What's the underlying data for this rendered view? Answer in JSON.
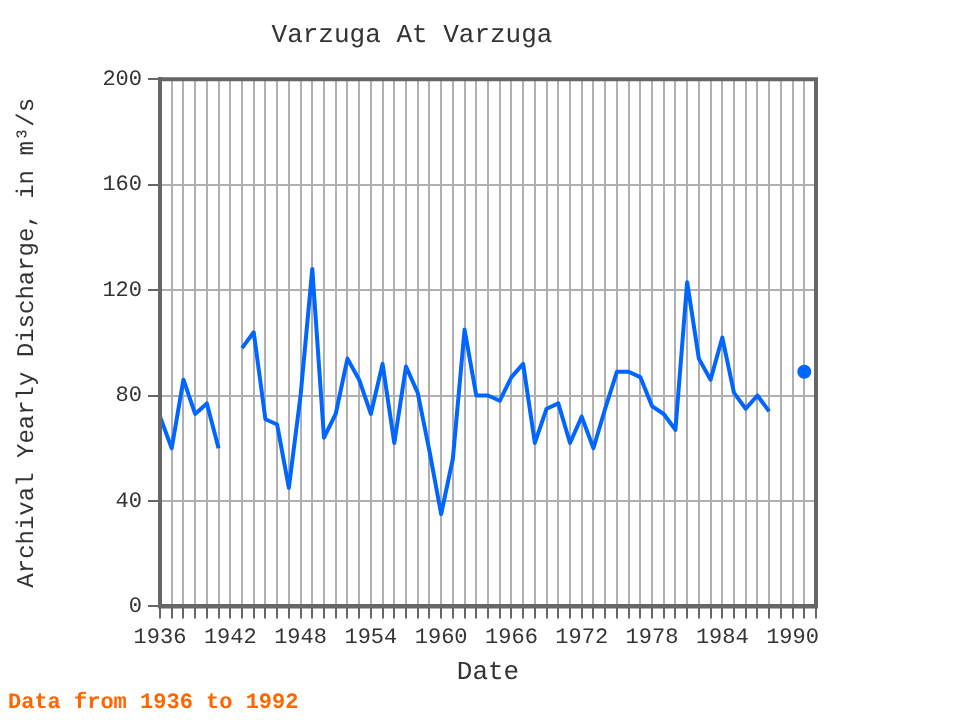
{
  "chart_data": {
    "type": "line",
    "title": "Varzuga At Varzuga",
    "xlabel": "Date",
    "ylabel": "Archival Yearly Discharge, in m³/s",
    "annotations": [
      "Data from 1936 to 1992"
    ],
    "x": [
      1936,
      1937,
      1938,
      1939,
      1940,
      1941,
      1942,
      1943,
      1944,
      1945,
      1946,
      1947,
      1948,
      1949,
      1950,
      1951,
      1952,
      1953,
      1954,
      1955,
      1956,
      1957,
      1958,
      1959,
      1960,
      1961,
      1962,
      1963,
      1964,
      1965,
      1966,
      1967,
      1968,
      1969,
      1970,
      1971,
      1972,
      1973,
      1974,
      1975,
      1976,
      1977,
      1978,
      1979,
      1980,
      1981,
      1982,
      1983,
      1984,
      1985,
      1986,
      1987,
      1988,
      1989,
      1990,
      1991
    ],
    "series": [
      {
        "color": "#0066ff",
        "values": [
          72,
          60,
          86,
          73,
          77,
          60,
          null,
          98,
          104,
          71,
          69,
          45,
          80,
          128,
          64,
          73,
          94,
          86,
          73,
          92,
          62,
          91,
          81,
          59,
          35,
          56,
          105,
          80,
          80,
          78,
          87,
          92,
          62,
          75,
          77,
          62,
          72,
          60,
          75,
          89,
          89,
          87,
          76,
          73,
          67,
          123,
          94,
          86,
          102,
          81,
          75,
          80,
          74,
          null,
          null,
          89
        ]
      }
    ],
    "xlim": [
      1936,
      1992
    ],
    "xticks": [
      1936,
      {
        "value": 1937,
        "label": null
      },
      {
        "value": 1938,
        "label": null
      },
      {
        "value": 1939,
        "label": null
      },
      {
        "value": 1940,
        "label": null
      },
      {
        "value": 1941,
        "label": null
      },
      1942,
      {
        "value": 1943,
        "label": null
      },
      {
        "value": 1944,
        "label": null
      },
      {
        "value": 1945,
        "label": null
      },
      {
        "value": 1946,
        "label": null
      },
      {
        "value": 1947,
        "label": null
      },
      1948,
      {
        "value": 1949,
        "label": null
      },
      {
        "value": 1950,
        "label": null
      },
      {
        "value": 1951,
        "label": null
      },
      {
        "value": 1952,
        "label": null
      },
      {
        "value": 1953,
        "label": null
      },
      1954,
      {
        "value": 1955,
        "label": null
      },
      {
        "value": 1956,
        "label": null
      },
      {
        "value": 1957,
        "label": null
      },
      {
        "value": 1958,
        "label": null
      },
      {
        "value": 1959,
        "label": null
      },
      1960,
      {
        "value": 1961,
        "label": null
      },
      {
        "value": 1962,
        "label": null
      },
      {
        "value": 1963,
        "label": null
      },
      {
        "value": 1964,
        "label": null
      },
      {
        "value": 1965,
        "label": null
      },
      1966,
      {
        "value": 1967,
        "label": null
      },
      {
        "value": 1968,
        "label": null
      },
      {
        "value": 1969,
        "label": null
      },
      {
        "value": 1970,
        "label": null
      },
      {
        "value": 1971,
        "label": null
      },
      1972,
      {
        "value": 1973,
        "label": null
      },
      {
        "value": 1974,
        "label": null
      },
      {
        "value": 1975,
        "label": null
      },
      {
        "value": 1976,
        "label": null
      },
      {
        "value": 1977,
        "label": null
      },
      1978,
      {
        "value": 1979,
        "label": null
      },
      {
        "value": 1980,
        "label": null
      },
      {
        "value": 1981,
        "label": null
      },
      {
        "value": 1982,
        "label": null
      },
      {
        "value": 1983,
        "label": null
      },
      1984,
      {
        "value": 1985,
        "label": null
      },
      {
        "value": 1986,
        "label": null
      },
      {
        "value": 1987,
        "label": null
      },
      {
        "value": 1988,
        "label": null
      },
      {
        "value": 1989,
        "label": null
      },
      1990,
      {
        "value": 1991,
        "label": null
      },
      {
        "value": 1992,
        "label": null
      }
    ],
    "ylim": [
      0,
      200
    ],
    "yticks": [
      0,
      40,
      80,
      120,
      160,
      200
    ],
    "grid": true,
    "marker": "none",
    "line_style": "solid"
  }
}
